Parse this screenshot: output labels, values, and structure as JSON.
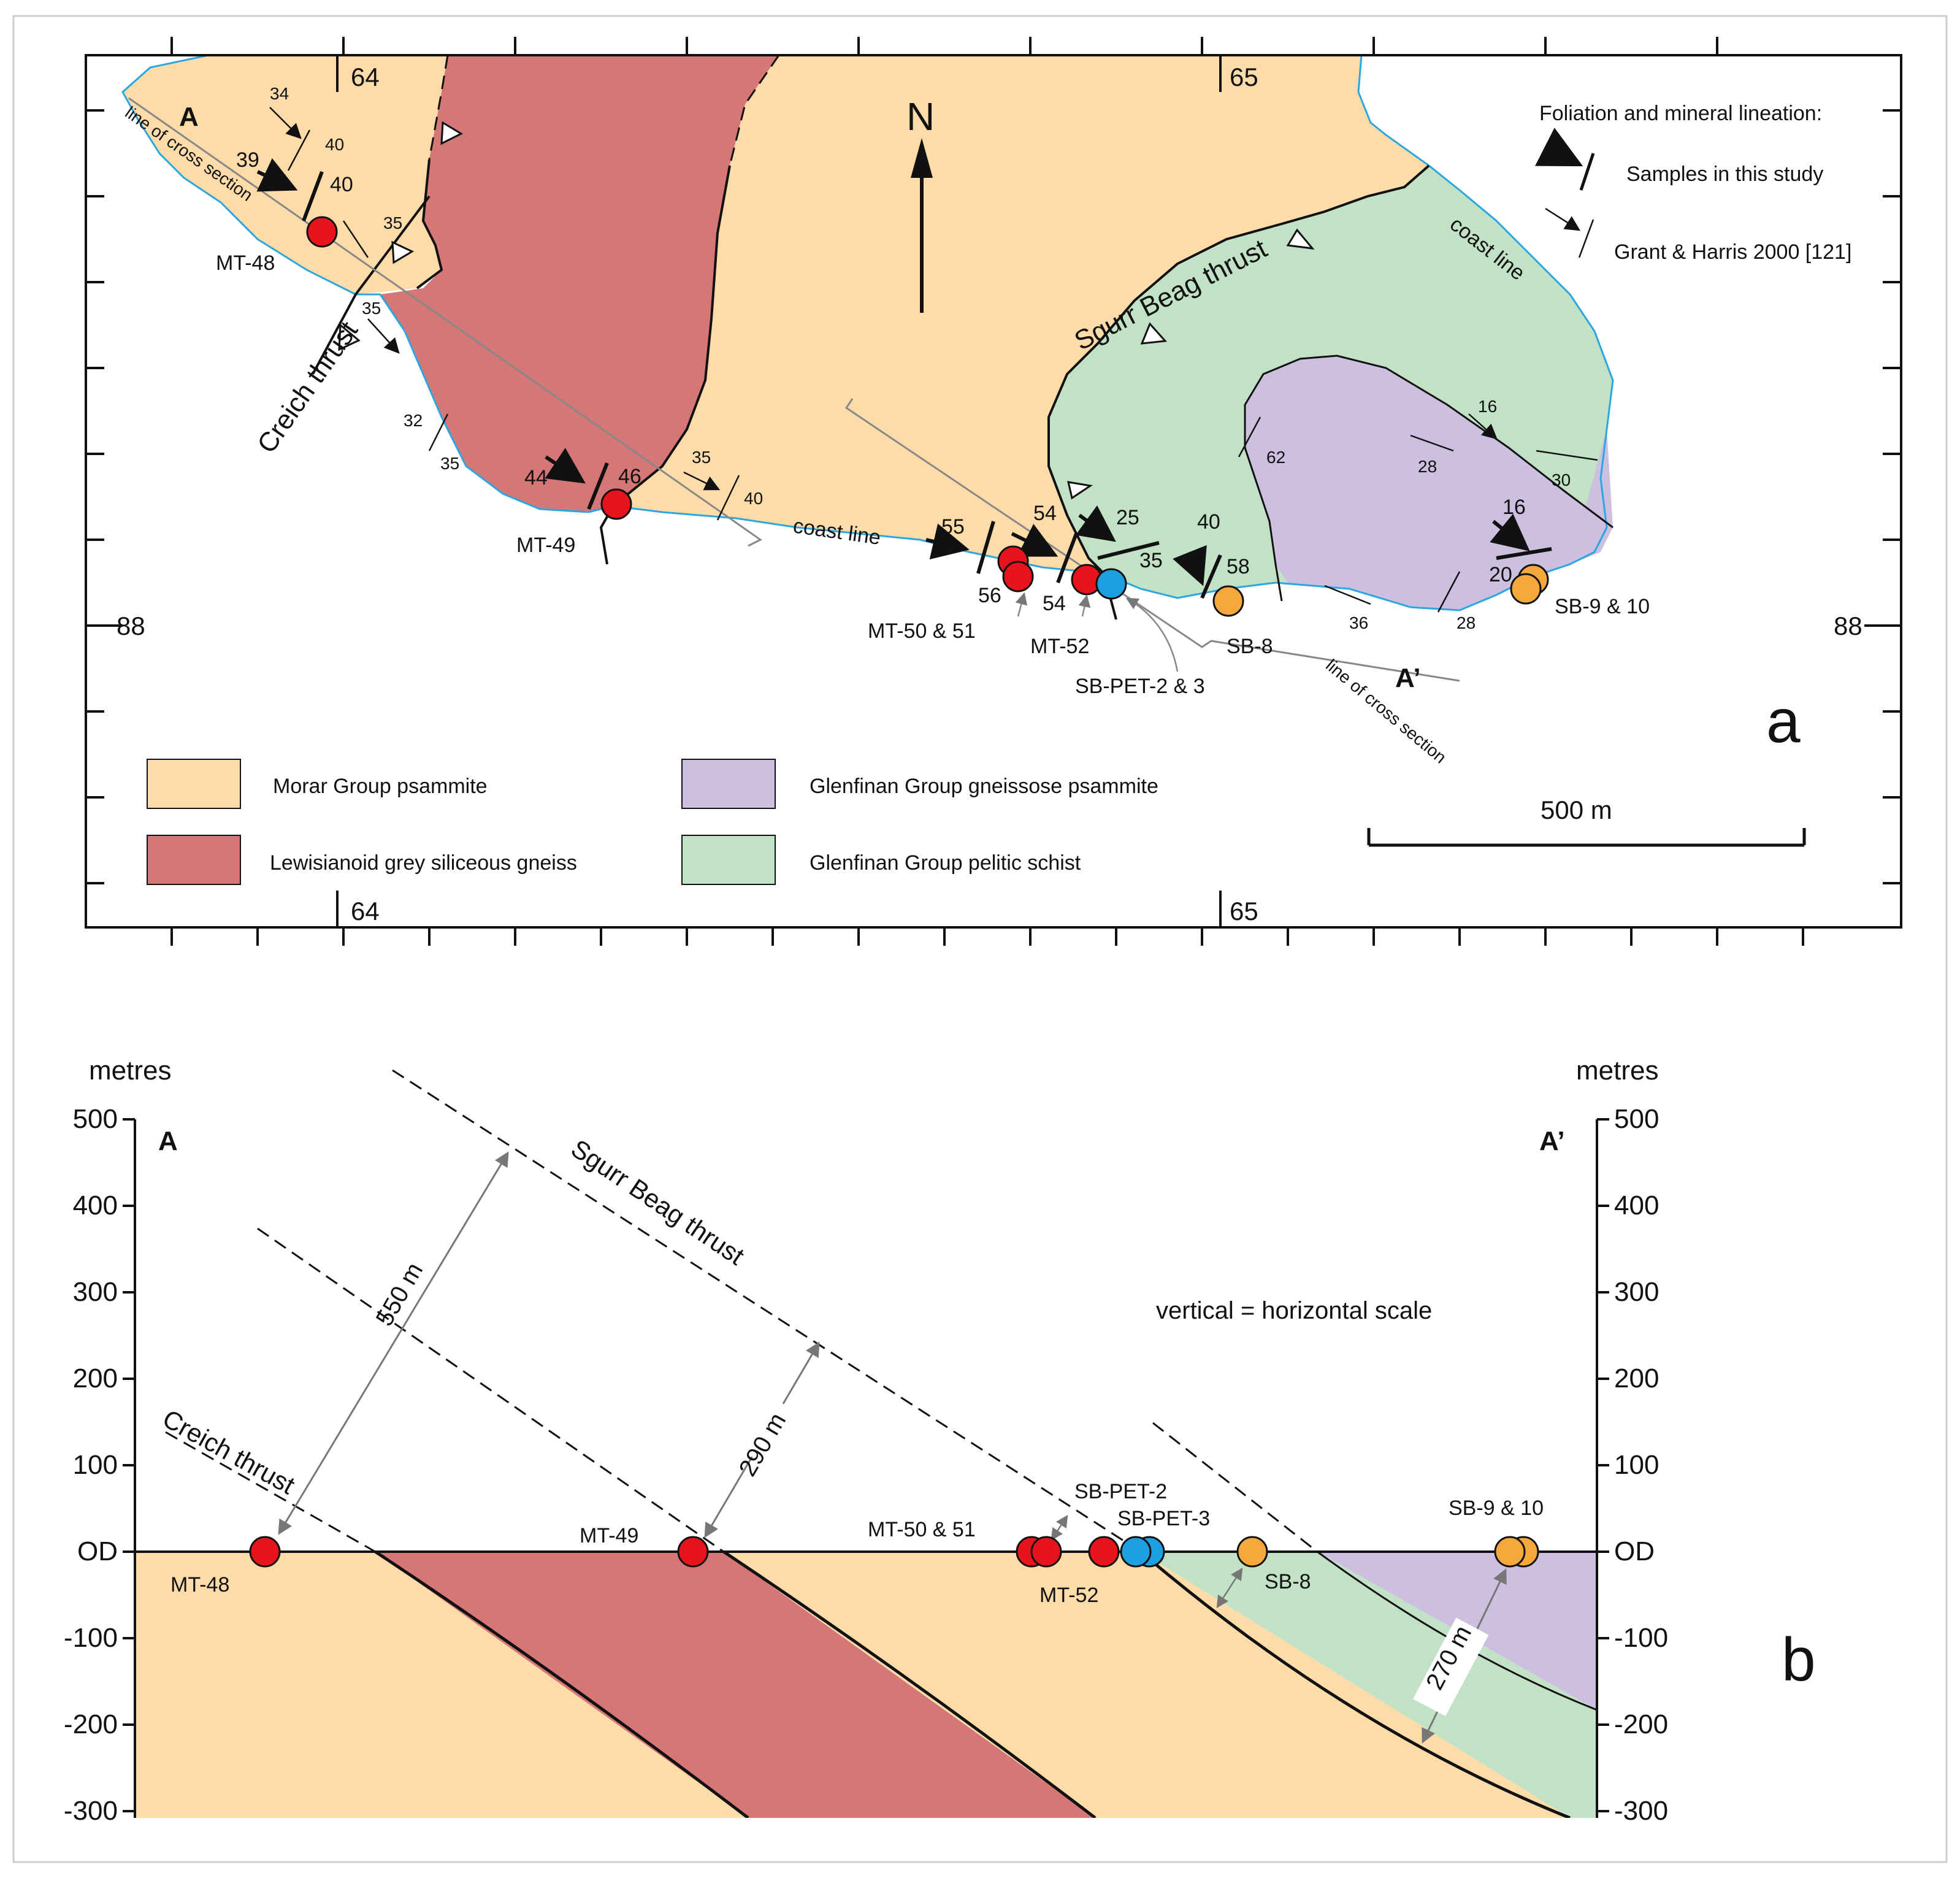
{
  "map": {
    "panel_letter": "a",
    "north_label": "N",
    "grid_labels": {
      "e64": "64",
      "e65": "65",
      "n88": "88"
    },
    "legend_title": "Foliation and mineral lineation:",
    "legend_items": {
      "samples": "Samples in this study",
      "grant": "Grant & Harris 2000 [121]"
    },
    "units": {
      "morar": "Morar Group psammite",
      "lewisianoid": "Lewisianoid grey siliceous gneiss",
      "glenfinan_psammite": "Glenfinan Group gneissose psammite",
      "glenfinan_schist": "Glenfinan Group pelitic schist"
    },
    "unit_colors": {
      "morar": "#fddcaa",
      "lewisianoid": "#d47776",
      "glenfinan_psammite": "#cdbfe0",
      "glenfinan_schist": "#c2e2c6"
    },
    "scale_label": "500 m",
    "features": {
      "creich": "Creich thrust",
      "sgurr": "Sgurr Beag thrust",
      "coast": "coast line",
      "section_line": "line of cross section",
      "end_a": "A",
      "end_a_prime": "A’"
    },
    "samples": {
      "mt48": "MT-48",
      "mt49": "MT-49",
      "mt5051": "MT-50 & 51",
      "mt52": "MT-52",
      "sbpet": "SB-PET-2 & 3",
      "sb8": "SB-8",
      "sb910": "SB-9 & 10"
    },
    "sample_colors": {
      "mt": "#e8141c",
      "sbpet": "#1ea0e0",
      "sb": "#f5a93c"
    },
    "dips": {
      "d34": "34",
      "d40a": "40",
      "d39": "39",
      "d40b": "40",
      "d35a": "35",
      "d35b": "35",
      "d32": "32",
      "d35c": "35",
      "d44": "44",
      "d46": "46",
      "d35d": "35",
      "d40c": "40",
      "d55": "55",
      "d56": "56",
      "d54a": "54",
      "d54b": "54",
      "d25": "25",
      "d35e": "35",
      "d40d": "40",
      "d58": "58",
      "d62": "62",
      "d16a": "16",
      "d28a": "28",
      "d30": "30",
      "d16b": "16",
      "d20": "20",
      "d36": "36",
      "d28b": "28"
    }
  },
  "section": {
    "panel_letter": "b",
    "axis_label": "metres",
    "end_a": "A",
    "end_a_prime": "A’",
    "scale_note": "vertical = horizontal scale",
    "y_ticks": [
      "500",
      "400",
      "300",
      "200",
      "100",
      "OD",
      "-100",
      "-200",
      "-300"
    ],
    "thrusts": {
      "creich": "Creich thrust",
      "sgurr": "Sgurr Beag thrust"
    },
    "thickness": {
      "t550": "550 m",
      "t290": "290 m",
      "t270": "270 m"
    },
    "samples": {
      "mt48": "MT-48",
      "mt49": "MT-49",
      "mt5051": "MT-50 & 51",
      "mt52": "MT-52",
      "sbpet2": "SB-PET-2",
      "sbpet3": "SB-PET-3",
      "sb8": "SB-8",
      "sb910": "SB-9 & 10"
    }
  }
}
